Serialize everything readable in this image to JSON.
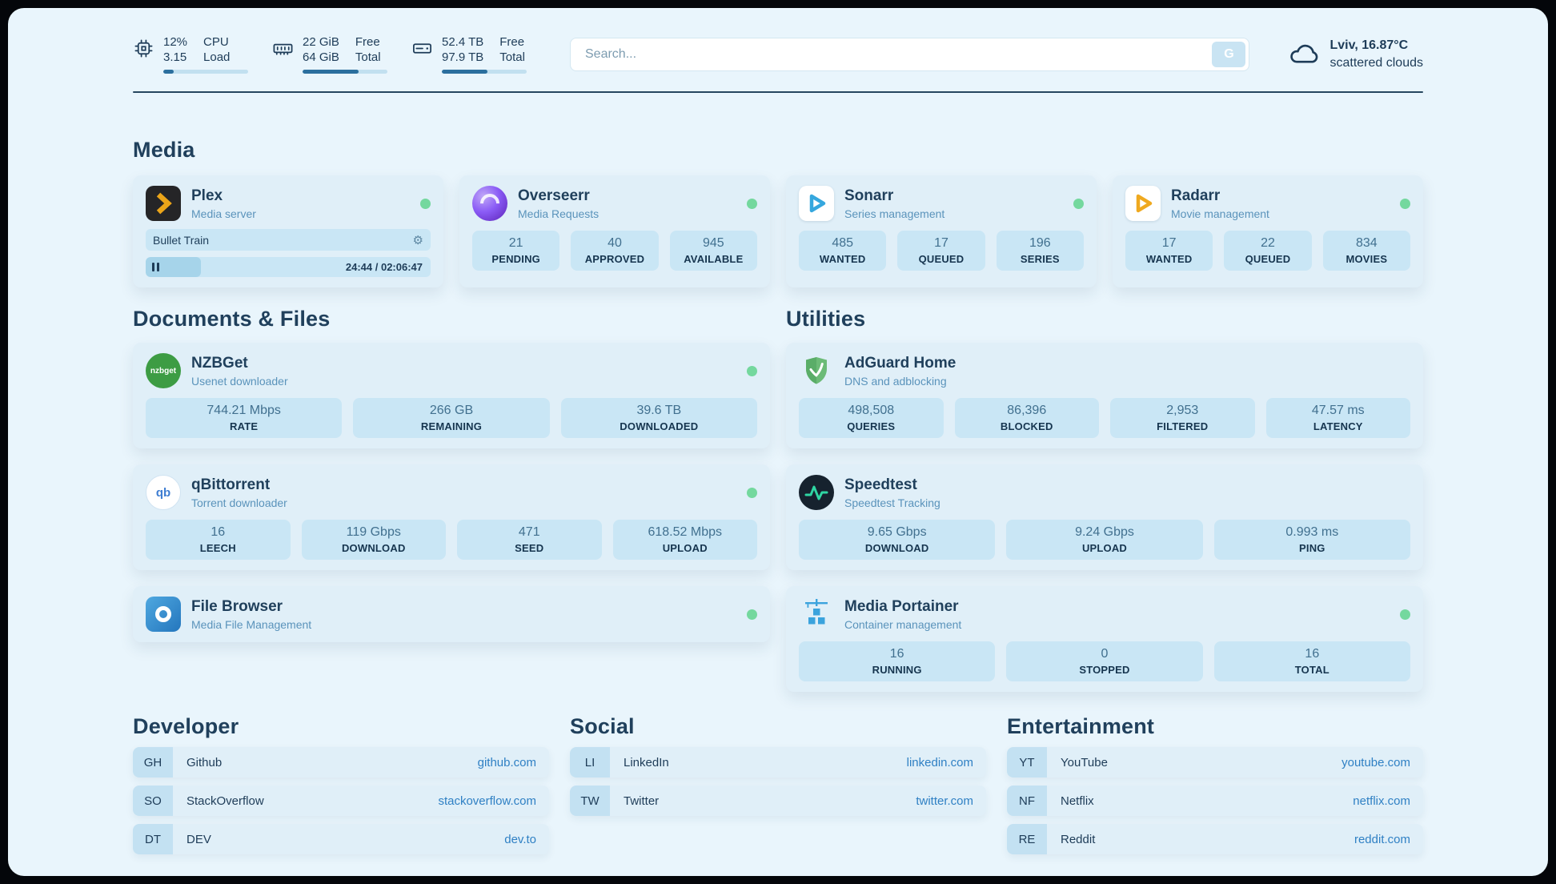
{
  "topbar": {
    "cpu": {
      "value_top": "12%",
      "value_bottom": "3.15",
      "label_top": "CPU",
      "label_bottom": "Load",
      "bar_percent": 12
    },
    "memory": {
      "value_top": "22 GiB",
      "value_bottom": "64 GiB",
      "label_top": "Free",
      "label_bottom": "Total",
      "bar_percent": 66
    },
    "disk": {
      "value_top": "52.4 TB",
      "value_bottom": "97.9 TB",
      "label_top": "Free",
      "label_bottom": "Total",
      "bar_percent": 54
    },
    "search": {
      "placeholder": "Search...",
      "button_label": "G"
    },
    "weather": {
      "location": "Lviv, 16.87°C",
      "condition": "scattered clouds"
    }
  },
  "media": {
    "title": "Media",
    "plex": {
      "name": "Plex",
      "subtitle": "Media server",
      "now_playing": {
        "title": "Bullet Train",
        "time": "24:44 / 02:06:47",
        "progress_percent": 19.5
      }
    },
    "overseerr": {
      "name": "Overseerr",
      "subtitle": "Media Requests",
      "stats": [
        {
          "value": "21",
          "label": "PENDING"
        },
        {
          "value": "40",
          "label": "APPROVED"
        },
        {
          "value": "945",
          "label": "AVAILABLE"
        }
      ]
    },
    "sonarr": {
      "name": "Sonarr",
      "subtitle": "Series management",
      "stats": [
        {
          "value": "485",
          "label": "WANTED"
        },
        {
          "value": "17",
          "label": "QUEUED"
        },
        {
          "value": "196",
          "label": "SERIES"
        }
      ]
    },
    "radarr": {
      "name": "Radarr",
      "subtitle": "Movie management",
      "stats": [
        {
          "value": "17",
          "label": "WANTED"
        },
        {
          "value": "22",
          "label": "QUEUED"
        },
        {
          "value": "834",
          "label": "MOVIES"
        }
      ]
    }
  },
  "documents": {
    "title": "Documents & Files",
    "nzbget": {
      "name": "NZBGet",
      "subtitle": "Usenet downloader",
      "icon_text": "nzbget",
      "stats": [
        {
          "value": "744.21 Mbps",
          "label": "RATE"
        },
        {
          "value": "266 GB",
          "label": "REMAINING"
        },
        {
          "value": "39.6 TB",
          "label": "DOWNLOADED"
        }
      ]
    },
    "qbittorrent": {
      "name": "qBittorrent",
      "subtitle": "Torrent downloader",
      "icon_text": "qb",
      "stats": [
        {
          "value": "16",
          "label": "LEECH"
        },
        {
          "value": "119 Gbps",
          "label": "DOWNLOAD"
        },
        {
          "value": "471",
          "label": "SEED"
        },
        {
          "value": "618.52 Mbps",
          "label": "UPLOAD"
        }
      ]
    },
    "filebrowser": {
      "name": "File Browser",
      "subtitle": "Media File Management"
    }
  },
  "utilities": {
    "title": "Utilities",
    "adguard": {
      "name": "AdGuard Home",
      "subtitle": "DNS and adblocking",
      "stats": [
        {
          "value": "498,508",
          "label": "QUERIES"
        },
        {
          "value": "86,396",
          "label": "BLOCKED"
        },
        {
          "value": "2,953",
          "label": "FILTERED"
        },
        {
          "value": "47.57 ms",
          "label": "LATENCY"
        }
      ]
    },
    "speedtest": {
      "name": "Speedtest",
      "subtitle": "Speedtest Tracking",
      "stats": [
        {
          "value": "9.65 Gbps",
          "label": "DOWNLOAD"
        },
        {
          "value": "9.24 Gbps",
          "label": "UPLOAD"
        },
        {
          "value": "0.993 ms",
          "label": "PING"
        }
      ]
    },
    "portainer": {
      "name": "Media Portainer",
      "subtitle": "Container management",
      "stats": [
        {
          "value": "16",
          "label": "RUNNING"
        },
        {
          "value": "0",
          "label": "STOPPED"
        },
        {
          "value": "16",
          "label": "TOTAL"
        }
      ]
    }
  },
  "bookmarks": [
    {
      "title": "Developer",
      "items": [
        {
          "abbr": "GH",
          "name": "Github",
          "url": "github.com"
        },
        {
          "abbr": "SO",
          "name": "StackOverflow",
          "url": "stackoverflow.com"
        },
        {
          "abbr": "DT",
          "name": "DEV",
          "url": "dev.to"
        }
      ]
    },
    {
      "title": "Social",
      "items": [
        {
          "abbr": "LI",
          "name": "LinkedIn",
          "url": "linkedin.com"
        },
        {
          "abbr": "TW",
          "name": "Twitter",
          "url": "twitter.com"
        }
      ]
    },
    {
      "title": "Entertainment",
      "items": [
        {
          "abbr": "YT",
          "name": "YouTube",
          "url": "youtube.com"
        },
        {
          "abbr": "NF",
          "name": "Netflix",
          "url": "netflix.com"
        },
        {
          "abbr": "RE",
          "name": "Reddit",
          "url": "reddit.com"
        }
      ]
    }
  ]
}
